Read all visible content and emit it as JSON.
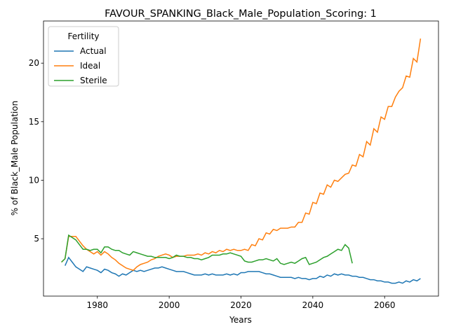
{
  "chart_data": {
    "type": "line",
    "title": "FAVOUR_SPANKING_Black_Male_Population_Scoring: 1",
    "x_label": "Years",
    "y_label": "% of Black_Male Population",
    "legend_title": "Fertility",
    "legend_position": "upper left",
    "x": [
      1970,
      1971,
      1972,
      1973,
      1974,
      1975,
      1976,
      1977,
      1978,
      1979,
      1980,
      1981,
      1982,
      1983,
      1984,
      1985,
      1986,
      1987,
      1988,
      1989,
      1990,
      1991,
      1992,
      1993,
      1994,
      1995,
      1996,
      1997,
      1998,
      1999,
      2000,
      2001,
      2002,
      2003,
      2004,
      2005,
      2006,
      2007,
      2008,
      2009,
      2010,
      2011,
      2012,
      2013,
      2014,
      2015,
      2016,
      2017,
      2018,
      2019,
      2020,
      2021,
      2022,
      2023,
      2024,
      2025,
      2026,
      2027,
      2028,
      2029,
      2030,
      2031,
      2032,
      2033,
      2034,
      2035,
      2036,
      2037,
      2038,
      2039,
      2040,
      2041,
      2042,
      2043,
      2044,
      2045,
      2046,
      2047,
      2048,
      2049,
      2050,
      2051,
      2052,
      2053,
      2054,
      2055,
      2056,
      2057,
      2058,
      2059,
      2060,
      2061,
      2062,
      2063,
      2064,
      2065,
      2066,
      2067,
      2068,
      2069,
      2070
    ],
    "series": [
      {
        "name": "Actual",
        "color": "#1f77b4",
        "values": [
          null,
          2.7,
          3.4,
          3.0,
          2.6,
          2.4,
          2.2,
          2.6,
          2.5,
          2.4,
          2.3,
          2.1,
          2.4,
          2.3,
          2.1,
          2.0,
          1.8,
          2.0,
          1.9,
          2.1,
          2.3,
          2.2,
          2.3,
          2.2,
          2.3,
          2.4,
          2.5,
          2.5,
          2.6,
          2.5,
          2.4,
          2.3,
          2.2,
          2.2,
          2.2,
          2.1,
          2.0,
          1.9,
          1.9,
          1.9,
          2.0,
          1.9,
          2.0,
          1.9,
          1.9,
          1.9,
          2.0,
          1.9,
          2.0,
          1.9,
          2.1,
          2.1,
          2.2,
          2.2,
          2.2,
          2.2,
          2.1,
          2.0,
          2.0,
          1.9,
          1.8,
          1.7,
          1.7,
          1.7,
          1.7,
          1.6,
          1.7,
          1.6,
          1.6,
          1.5,
          1.6,
          1.6,
          1.8,
          1.7,
          1.9,
          1.8,
          2.0,
          1.9,
          2.0,
          1.9,
          1.9,
          1.8,
          1.8,
          1.7,
          1.7,
          1.6,
          1.5,
          1.5,
          1.4,
          1.4,
          1.3,
          1.3,
          1.2,
          1.2,
          1.3,
          1.2,
          1.4,
          1.3,
          1.5,
          1.4,
          1.6
        ]
      },
      {
        "name": "Ideal",
        "color": "#ff7f0e",
        "values": [
          3.0,
          3.3,
          5.2,
          5.2,
          5.2,
          4.8,
          4.4,
          4.1,
          3.9,
          3.7,
          3.9,
          3.6,
          3.9,
          3.7,
          3.4,
          3.2,
          2.9,
          2.7,
          2.5,
          2.4,
          2.3,
          2.6,
          2.8,
          2.9,
          3.0,
          3.2,
          3.3,
          3.5,
          3.6,
          3.7,
          3.6,
          3.4,
          3.5,
          3.5,
          3.5,
          3.6,
          3.6,
          3.6,
          3.7,
          3.6,
          3.8,
          3.7,
          3.9,
          3.8,
          4.0,
          3.9,
          4.1,
          4.0,
          4.1,
          4.0,
          4.0,
          4.1,
          4.0,
          4.5,
          4.4,
          5.0,
          4.9,
          5.5,
          5.4,
          5.8,
          5.7,
          5.9,
          5.9,
          5.9,
          6.0,
          6.0,
          6.4,
          6.4,
          7.2,
          7.1,
          8.1,
          8.0,
          8.9,
          8.8,
          9.6,
          9.4,
          10.0,
          9.9,
          10.2,
          10.5,
          10.6,
          11.3,
          11.2,
          12.2,
          12.0,
          13.3,
          13.0,
          14.4,
          14.1,
          15.4,
          15.2,
          16.3,
          16.3,
          17.1,
          17.6,
          17.9,
          18.9,
          18.8,
          20.4,
          20.1,
          22.1
        ]
      },
      {
        "name": "Sterile",
        "color": "#2ca02c",
        "values": [
          3.0,
          3.3,
          5.3,
          5.1,
          4.9,
          4.5,
          4.1,
          4.1,
          4.0,
          4.1,
          4.1,
          3.8,
          4.3,
          4.3,
          4.1,
          4.0,
          4.0,
          3.8,
          3.7,
          3.6,
          3.9,
          3.8,
          3.7,
          3.6,
          3.5,
          3.5,
          3.4,
          3.4,
          3.4,
          3.4,
          3.3,
          3.4,
          3.6,
          3.5,
          3.5,
          3.4,
          3.4,
          3.3,
          3.3,
          3.2,
          3.3,
          3.4,
          3.6,
          3.6,
          3.6,
          3.7,
          3.7,
          3.8,
          3.7,
          3.6,
          3.5,
          3.1,
          3.0,
          3.0,
          3.1,
          3.2,
          3.2,
          3.3,
          3.2,
          3.1,
          3.3,
          2.9,
          2.8,
          2.9,
          3.0,
          2.9,
          3.1,
          3.3,
          3.4,
          2.8,
          2.9,
          3.0,
          3.2,
          3.4,
          3.5,
          3.7,
          3.9,
          4.1,
          4.0,
          4.5,
          4.2,
          2.9,
          null,
          null,
          null,
          null,
          null,
          null,
          null,
          null,
          null,
          null,
          null,
          null,
          null,
          null,
          null,
          null,
          null,
          null,
          null
        ]
      }
    ],
    "xlim": [
      1965,
      2075
    ],
    "xticks": [
      1980,
      2000,
      2020,
      2040,
      2060
    ],
    "ylim": [
      0.1,
      23.6
    ],
    "yticks": [
      5,
      10,
      15,
      20
    ],
    "grid": false
  }
}
